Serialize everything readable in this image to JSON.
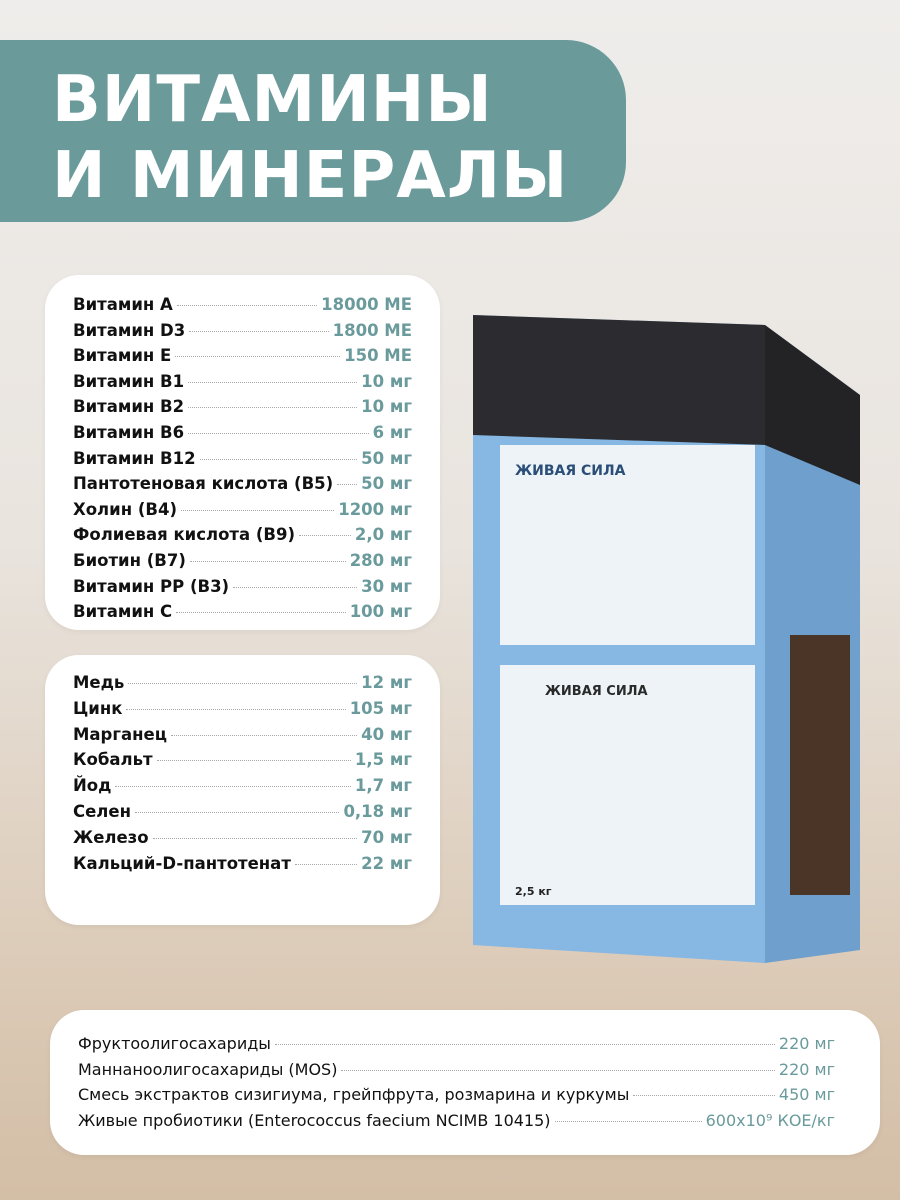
{
  "title": {
    "line1": "ВИТАМИНЫ",
    "line2": "И МИНЕРАЛЫ"
  },
  "vitamins": [
    {
      "name": "Витамин A",
      "value": "18000 МЕ"
    },
    {
      "name": "Витамин D3",
      "value": "1800 МЕ"
    },
    {
      "name": "Витамин E",
      "value": "150 МЕ"
    },
    {
      "name": "Витамин B1",
      "value": "10 мг"
    },
    {
      "name": "Витамин B2",
      "value": "10 мг"
    },
    {
      "name": "Витамин B6",
      "value": "6 мг"
    },
    {
      "name": "Витамин B12",
      "value": "50 мг"
    },
    {
      "name": "Пантотеновая кислота (B5)",
      "value": "50 мг"
    },
    {
      "name": "Холин (B4)",
      "value": "1200 мг"
    },
    {
      "name": "Фолиевая кислота (B9)",
      "value": "2,0 мг"
    },
    {
      "name": "Биотин (B7)",
      "value": "280 мг"
    },
    {
      "name": "Витамин PP (B3)",
      "value": "30 мг"
    },
    {
      "name": "Витамин C",
      "value": "100 мг"
    }
  ],
  "minerals": [
    {
      "name": "Медь",
      "value": "12 мг"
    },
    {
      "name": "Цинк",
      "value": "105 мг"
    },
    {
      "name": "Марганец",
      "value": "40 мг"
    },
    {
      "name": "Кобальт",
      "value": "1,5 мг"
    },
    {
      "name": "Йод",
      "value": "1,7 мг"
    },
    {
      "name": "Селен",
      "value": "0,18 мг"
    },
    {
      "name": "Железо",
      "value": "70 мг"
    },
    {
      "name": "Кальций-D-пантотенат",
      "value": "22 мг"
    }
  ],
  "additives": [
    {
      "name": "Фруктоолигосахариды",
      "value": "220 мг"
    },
    {
      "name": "Маннаноолигосахариды (MOS)",
      "value": "220 мг"
    },
    {
      "name": "Смесь экстрактов сизигиума, грейпфрута, розмарина и куркумы",
      "value": "450 мг"
    },
    {
      "name": "Живые пробиотики (Enterococcus faecium NCIMB 10415)",
      "value": "600x10⁹ КОЕ/кг"
    }
  ],
  "bag": {
    "brand": "ЖИВАЯ СИЛА",
    "weight": "2,5 кг",
    "colors": {
      "blue": "#7fb3e0",
      "dark": "#2b2b2e"
    }
  },
  "colors": {
    "accent": "#6b9a9b"
  }
}
